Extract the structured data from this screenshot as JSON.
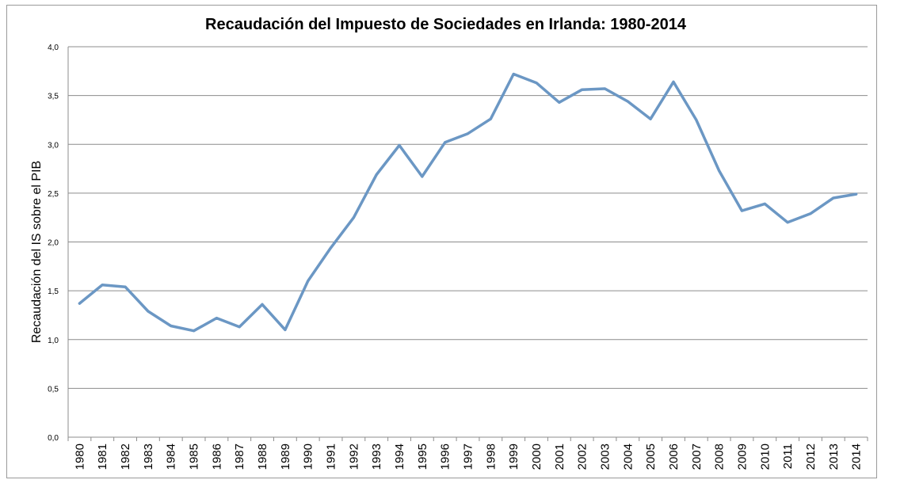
{
  "chart_data": {
    "type": "line",
    "title": "Recaudación del Impuesto de Sociedades en Irlanda: 1980-2014",
    "xlabel": "",
    "ylabel": "Recaudación del IS sobre el PIB",
    "ylim": [
      0,
      4
    ],
    "yticks": [
      0,
      0.5,
      1,
      1.5,
      2,
      2.5,
      3,
      3.5,
      4
    ],
    "ytick_labels": [
      "0,0",
      "0,5",
      "1,0",
      "1,5",
      "2,0",
      "2,5",
      "3,0",
      "3,5",
      "4,0"
    ],
    "grid": true,
    "legend": "none",
    "series_color": "#6b97c4",
    "categories": [
      "1980",
      "1981",
      "1982",
      "1983",
      "1984",
      "1985",
      "1986",
      "1987",
      "1988",
      "1989",
      "1990",
      "1991",
      "1992",
      "1993",
      "1994",
      "1995",
      "1996",
      "1997",
      "1998",
      "1999",
      "2000",
      "2001",
      "2002",
      "2003",
      "2004",
      "2005",
      "2006",
      "2007",
      "2008",
      "2009",
      "2010",
      "2011",
      "2012",
      "2013",
      "2014"
    ],
    "series": [
      {
        "name": "Recaudación del IS sobre el PIB",
        "values": [
          1.37,
          1.56,
          1.54,
          1.29,
          1.14,
          1.09,
          1.22,
          1.13,
          1.36,
          1.1,
          1.6,
          1.94,
          2.25,
          2.69,
          2.99,
          2.67,
          3.02,
          3.11,
          3.26,
          3.72,
          3.63,
          3.43,
          3.56,
          3.57,
          3.44,
          3.26,
          3.64,
          3.25,
          2.73,
          2.32,
          2.39,
          2.2,
          2.29,
          2.45,
          2.49
        ]
      }
    ]
  }
}
